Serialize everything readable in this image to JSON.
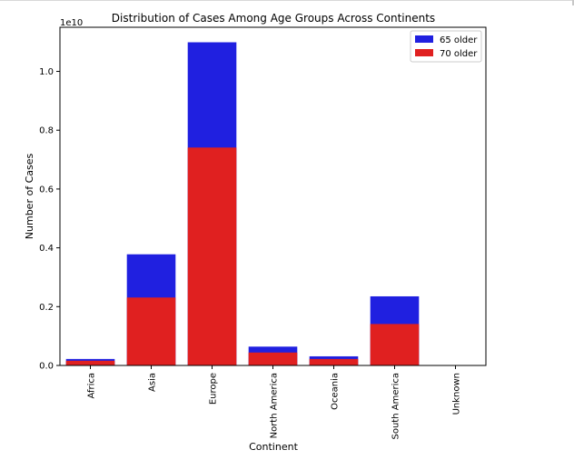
{
  "chart_data": {
    "type": "bar",
    "title": "Distribution of Cases Among Age Groups Across Continents",
    "xlabel": "Continent",
    "ylabel": "Number of Cases",
    "y_offset_label": "1e10",
    "y_tick_labels": [
      "0.0",
      "0.2",
      "0.4",
      "0.6",
      "0.8",
      "1.0"
    ],
    "ylim": [
      0,
      1.15
    ],
    "categories": [
      "Africa",
      "Asia",
      "Europe",
      "North America",
      "Oceania",
      "South America",
      "Unknown"
    ],
    "series": [
      {
        "name": "65 older",
        "values": [
          0.022,
          0.378,
          1.099,
          0.064,
          0.031,
          0.235,
          0
        ],
        "color": "#2020e0"
      },
      {
        "name": "70 older",
        "values": [
          0.016,
          0.231,
          0.741,
          0.044,
          0.022,
          0.141,
          0
        ],
        "color": "#e02020"
      }
    ],
    "legend_position": "top-right",
    "grid": false
  }
}
